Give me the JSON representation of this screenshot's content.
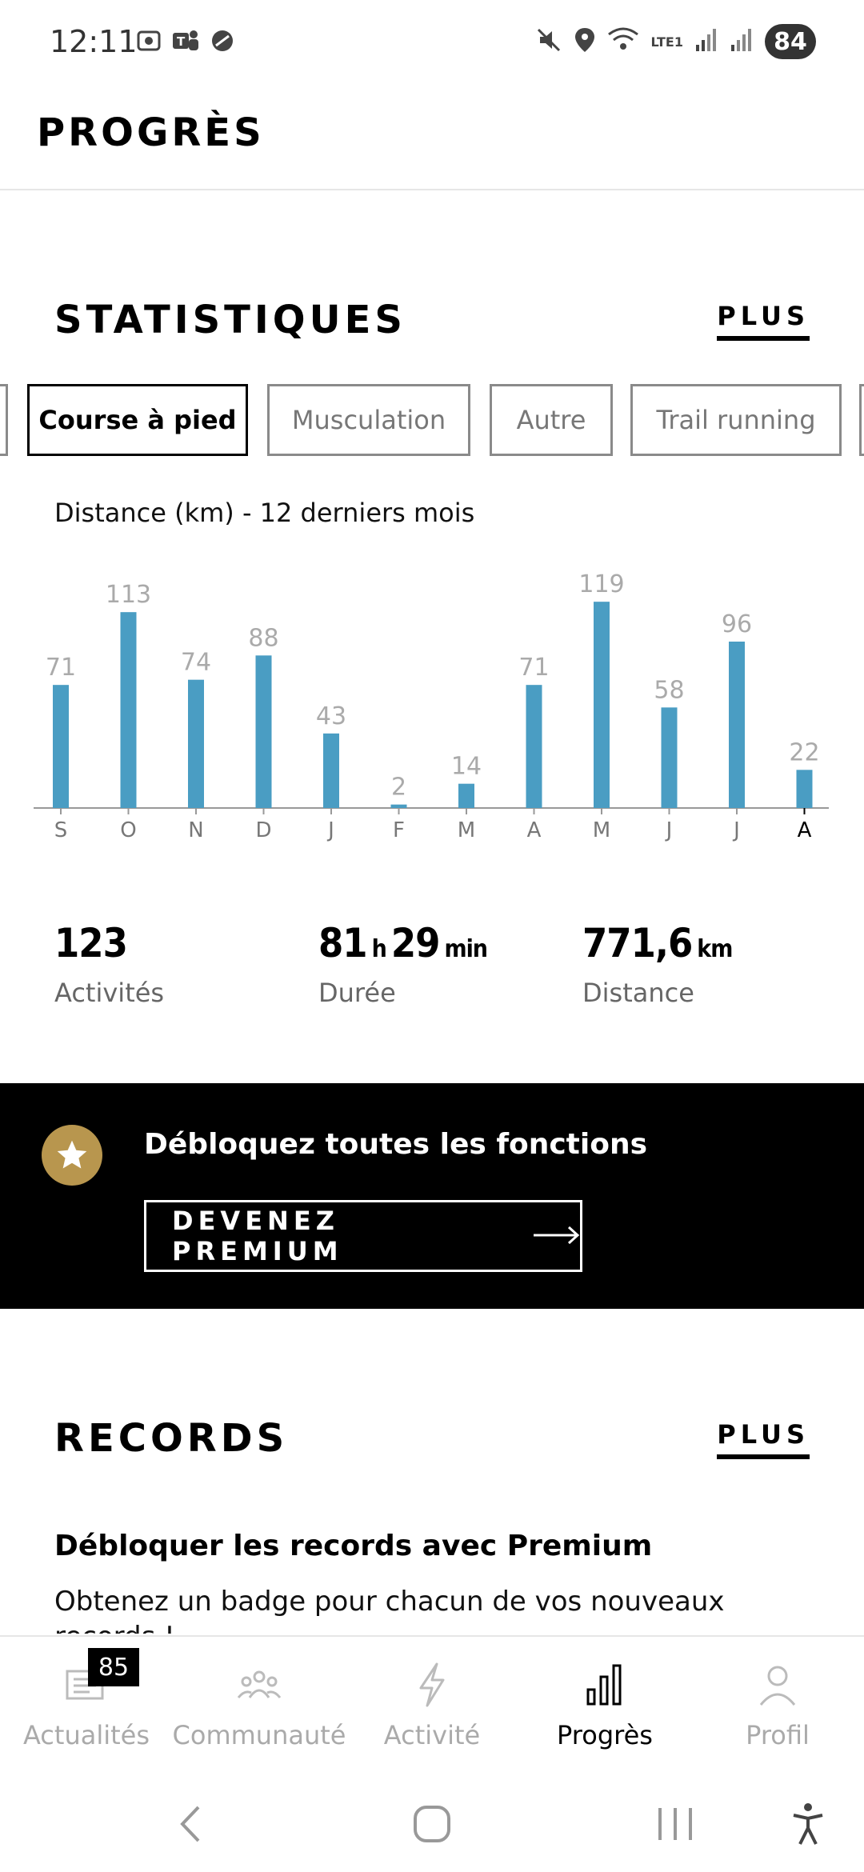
{
  "status_bar": {
    "time": "12:11",
    "battery": "84",
    "network": "LTE1"
  },
  "header": {
    "title": "PROGRÈS"
  },
  "statistics": {
    "title": "STATISTIQUES",
    "more_label": "PLUS",
    "tabs": [
      {
        "label": ""
      },
      {
        "label": "Course à pied",
        "active": true
      },
      {
        "label": "Musculation"
      },
      {
        "label": "Autre"
      },
      {
        "label": "Trail running"
      },
      {
        "label": ""
      }
    ],
    "chart_label": "Distance (km) - 12 derniers mois",
    "summary": {
      "activities_value": "123",
      "activities_label": "Activités",
      "duration_hours": "81",
      "duration_h_unit": "h",
      "duration_minutes": "29",
      "duration_min_unit": "min",
      "duration_label": "Durée",
      "distance_value": "771,6",
      "distance_unit": "km",
      "distance_label": "Distance"
    }
  },
  "chart_data": {
    "type": "bar",
    "title": "Distance (km) - 12 derniers mois",
    "categories": [
      "S",
      "O",
      "N",
      "D",
      "J",
      "F",
      "M",
      "A",
      "M",
      "J",
      "J",
      "A"
    ],
    "values": [
      71,
      113,
      74,
      88,
      43,
      2,
      14,
      71,
      119,
      58,
      96,
      22
    ],
    "ylim": [
      0,
      120
    ],
    "bar_color": "#4a9dc3",
    "label_color": "#aaaaaa",
    "highlight_last_tick": true
  },
  "premium": {
    "title": "Débloquez toutes les fonctions",
    "button_label": "DEVENEZ PREMIUM",
    "star_color": "#b8964e"
  },
  "records": {
    "title": "RECORDS",
    "more_label": "PLUS",
    "subtitle": "Débloquer les records avec Premium",
    "description": "Obtenez un badge pour chacun de vos nouveaux records !"
  },
  "bottom_nav": {
    "items": [
      {
        "label": "Actualités",
        "icon": "news-icon",
        "badge": "85"
      },
      {
        "label": "Communauté",
        "icon": "community-icon"
      },
      {
        "label": "Activité",
        "icon": "lightning-icon"
      },
      {
        "label": "Progrès",
        "icon": "bar-chart-icon",
        "active": true
      },
      {
        "label": "Profil",
        "icon": "person-icon"
      }
    ]
  }
}
